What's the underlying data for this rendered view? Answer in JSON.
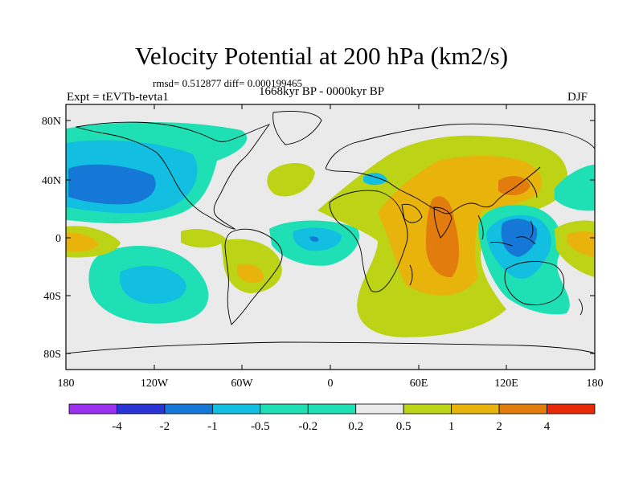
{
  "header": {
    "title": "Velocity Potential at 200 hPa (km2/s)",
    "stats": "rmsd= 0.512877 diff= 0.000199465",
    "period": "1668kyr BP - 0000kyr BP",
    "experiment": "Expt = tEVTb-tevta1",
    "season": "DJF"
  },
  "map": {
    "projection": "cylindrical equidistant",
    "lat_ticks": [
      "80N",
      "40N",
      "0",
      "40S",
      "80S"
    ],
    "lon_ticks": [
      "180",
      "120W",
      "60W",
      "0",
      "60E",
      "120E",
      "180"
    ]
  },
  "colorbar": {
    "levels": [
      "-4",
      "-2",
      "-1",
      "-0.5",
      "-0.2",
      "0.2",
      "0.5",
      "1",
      "2",
      "4"
    ],
    "colors": [
      "#9933ee",
      "#2a34d6",
      "#1577d6",
      "#12bfe0",
      "#1fe0b4",
      "#eaeaea",
      "#bcd316",
      "#e8b40c",
      "#e27c0c",
      "#e8290a"
    ]
  }
}
